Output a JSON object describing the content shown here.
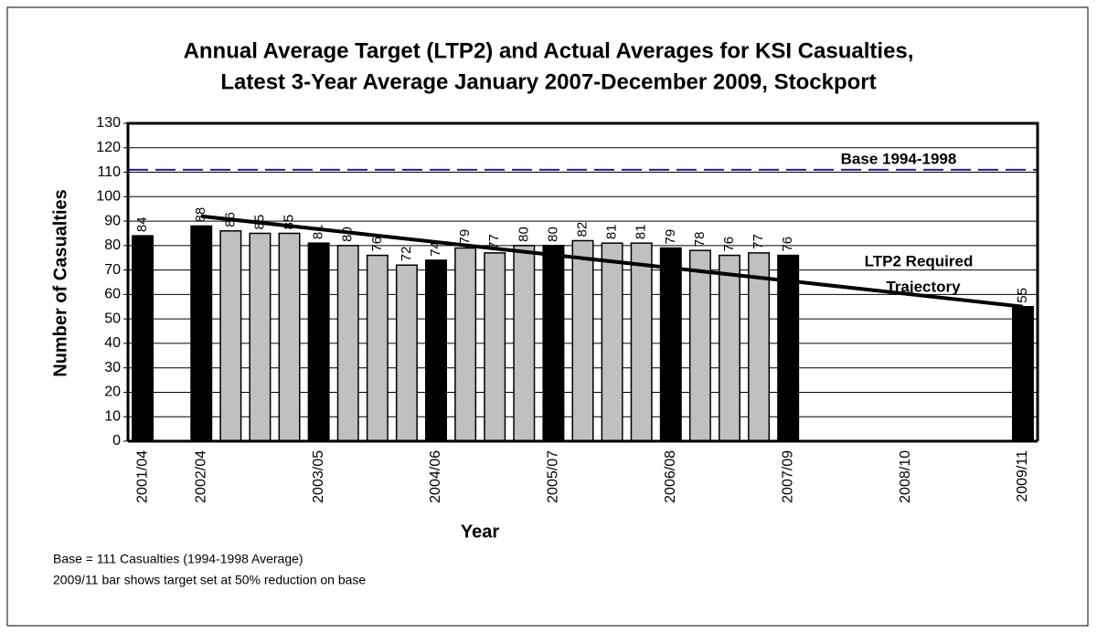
{
  "chart_data": {
    "type": "bar",
    "title": [
      "Annual Average Target (LTP2) and Actual Averages for KSI Casualties,",
      "Latest 3-Year Average January 2007-December 2009, Stockport"
    ],
    "x_label": "Year",
    "y_label": "Number of Casualties",
    "categories": [
      "2001/04",
      null,
      "2002/04",
      null,
      null,
      null,
      "2003/05",
      null,
      null,
      null,
      "2004/06",
      null,
      null,
      null,
      "2005/07",
      null,
      null,
      null,
      "2006/08",
      null,
      null,
      null,
      "2007/09",
      null,
      null,
      null,
      "2008/10",
      null,
      null,
      null,
      "2009/11"
    ],
    "values": [
      84,
      null,
      88,
      86,
      85,
      85,
      81,
      80,
      76,
      72,
      74,
      79,
      77,
      80,
      80,
      82,
      81,
      81,
      79,
      78,
      76,
      77,
      76,
      null,
      null,
      null,
      null,
      null,
      null,
      null,
      55
    ],
    "colors": [
      "#000000",
      null,
      "#000000",
      "#c0c0c0",
      "#c0c0c0",
      "#c0c0c0",
      "#000000",
      "#c0c0c0",
      "#c0c0c0",
      "#c0c0c0",
      "#000000",
      "#c0c0c0",
      "#c0c0c0",
      "#c0c0c0",
      "#000000",
      "#c0c0c0",
      "#c0c0c0",
      "#c0c0c0",
      "#000000",
      "#c0c0c0",
      "#c0c0c0",
      "#c0c0c0",
      "#000000",
      null,
      null,
      null,
      null,
      null,
      null,
      null,
      "#000000"
    ],
    "ylim": [
      0,
      130
    ],
    "yticks": [
      0,
      10,
      20,
      30,
      40,
      50,
      60,
      70,
      80,
      90,
      100,
      110,
      120,
      130
    ],
    "grid": true,
    "base": {
      "label": "Base 1994-1998",
      "value": 111,
      "color": "#1f1f8f"
    },
    "trajectory": {
      "label": [
        "LTP2 Required",
        "Trajectory"
      ],
      "categories": [
        "2002/04",
        "2009/11"
      ],
      "values": [
        92,
        55
      ],
      "color": "#000000"
    },
    "notes": [
      "Base = 111 Casualties (1994-1998 Average)",
      "2009/11 bar shows target set at 50% reduction on base"
    ]
  }
}
